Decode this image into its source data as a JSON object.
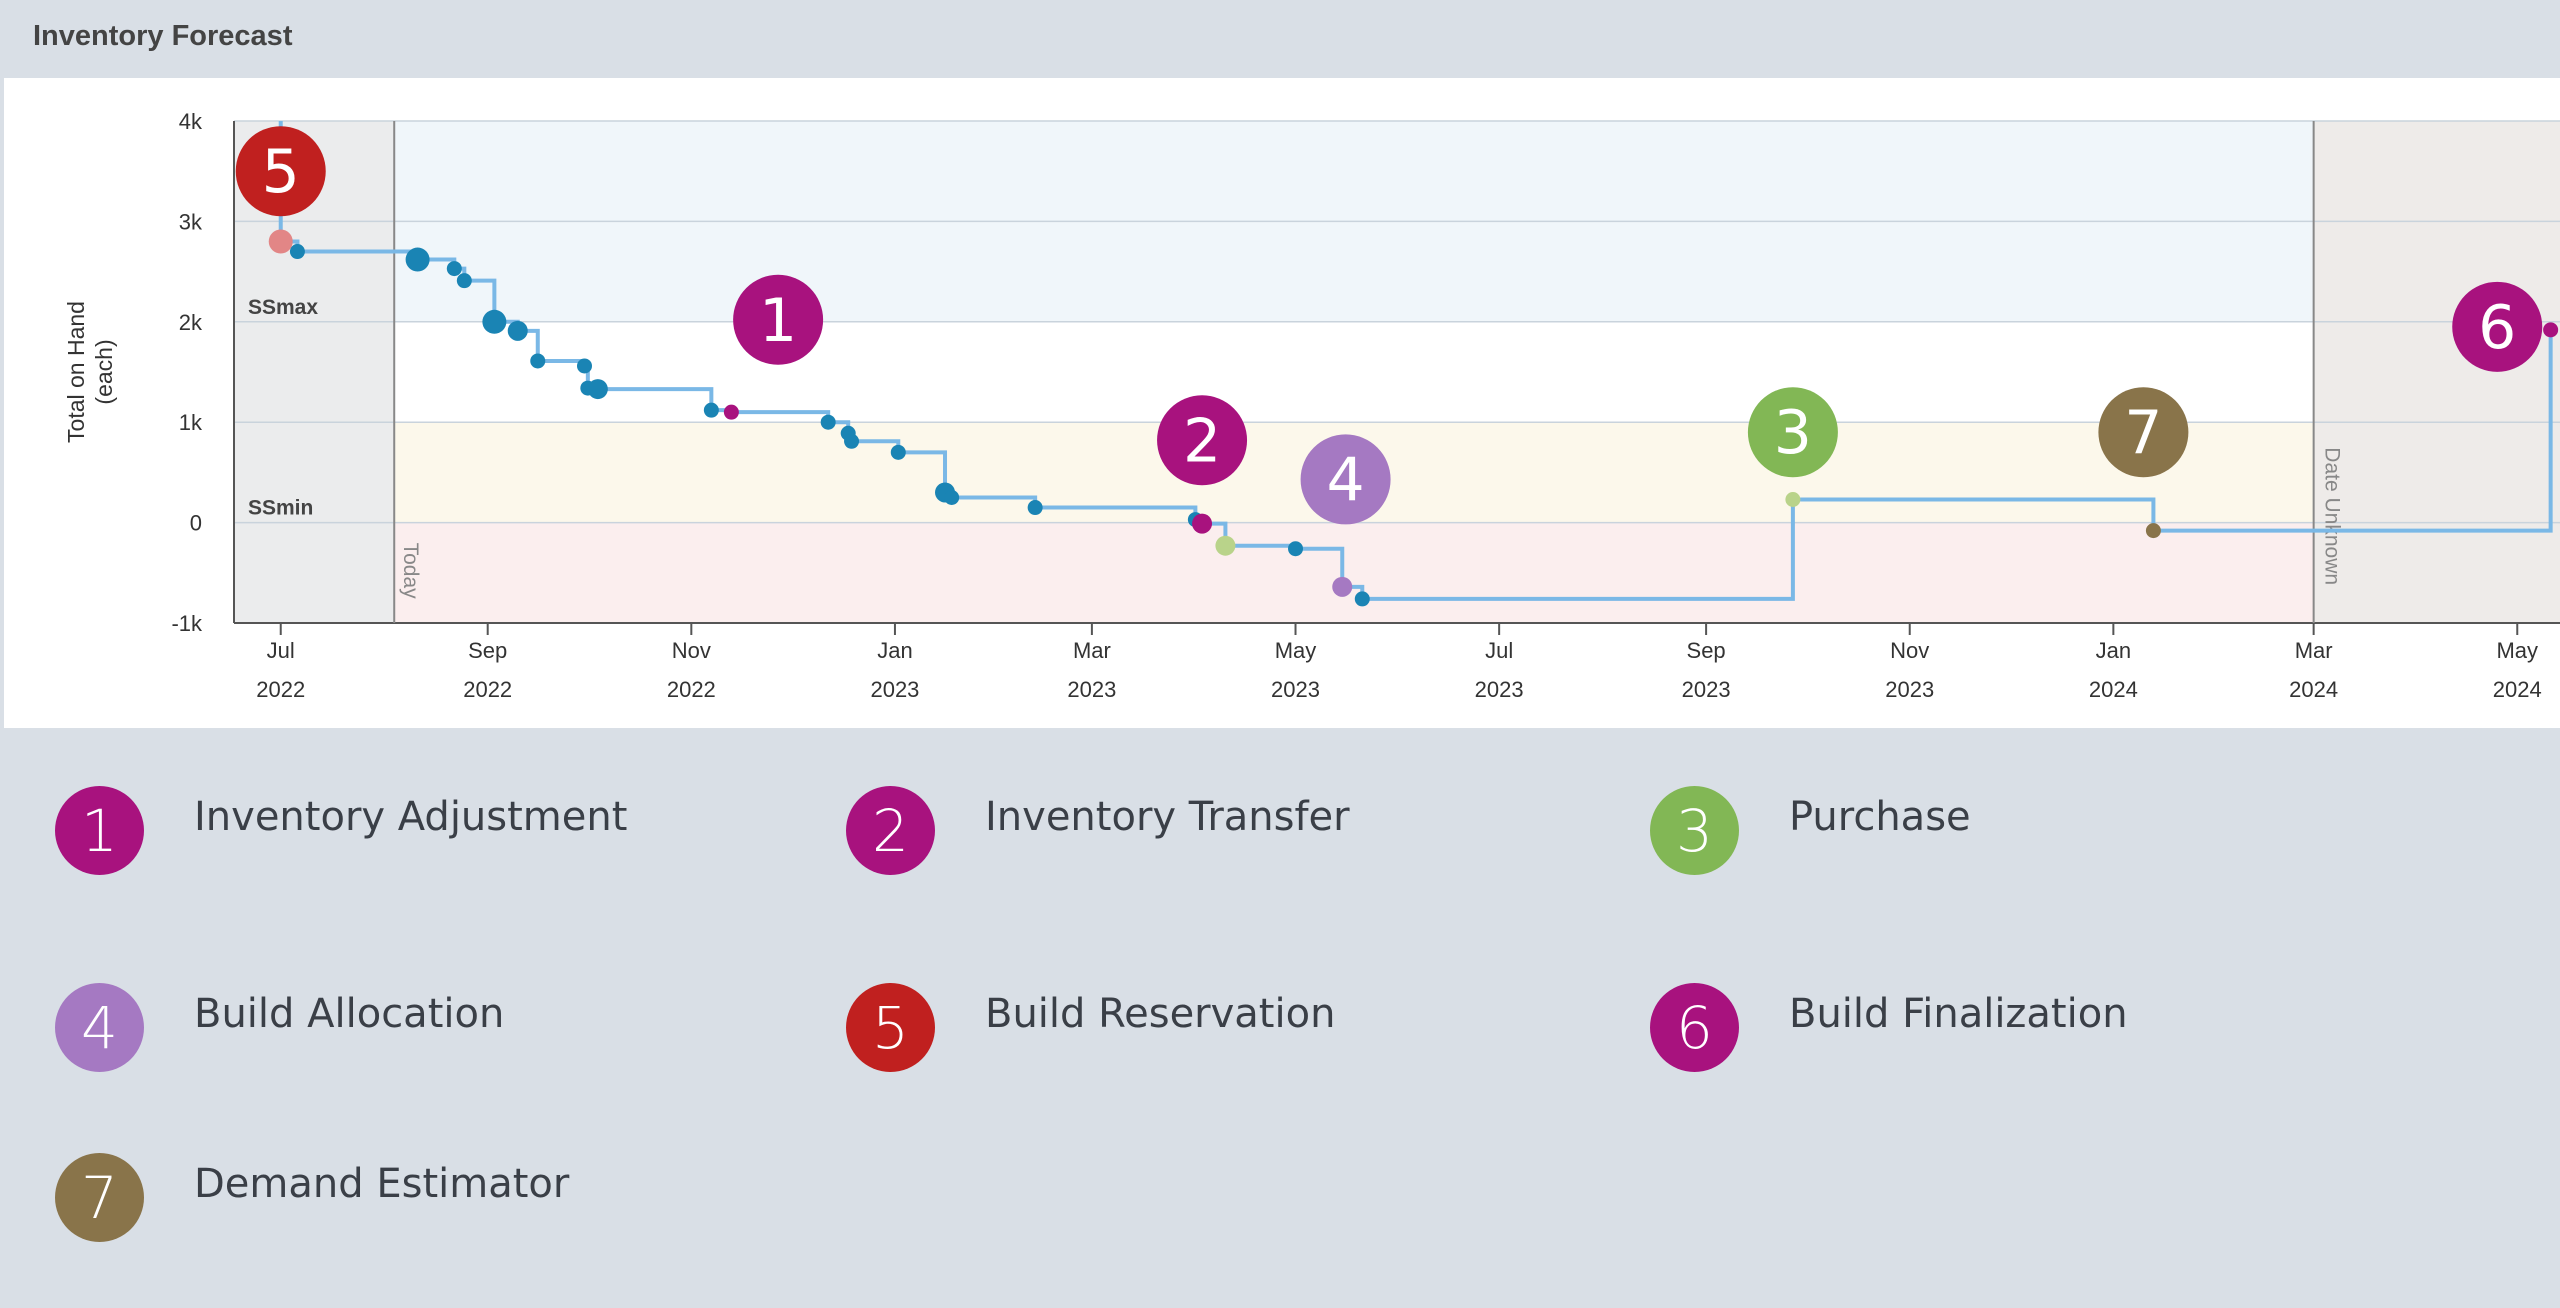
{
  "panel": {
    "title": "Inventory Forecast"
  },
  "colors": {
    "step_line": "#7ab8e6",
    "default_point": "#1a84b4",
    "band_ssmax": "#f0f6fa",
    "band_ssmin": "#fcf8eb",
    "band_negative": "#fbeeee",
    "shade_past": "#e8e9ea",
    "shade_unknown": "#ebe8e5"
  },
  "event_types": [
    {
      "n": "1",
      "label": "Inventory Adjustment",
      "color": "#a8127e"
    },
    {
      "n": "2",
      "label": "Inventory Transfer",
      "color": "#a8127e"
    },
    {
      "n": "3",
      "label": "Purchase",
      "color": "#82b755"
    },
    {
      "n": "4",
      "label": "Build Allocation",
      "color": "#a579c2"
    },
    {
      "n": "5",
      "label": "Build Reservation",
      "color": "#c0201f"
    },
    {
      "n": "6",
      "label": "Build Finalization",
      "color": "#a8127e"
    },
    {
      "n": "7",
      "label": "Demand Estimator",
      "color": "#89744a"
    }
  ],
  "chart_data": {
    "type": "line",
    "step": true,
    "title": "",
    "xlabel": "",
    "ylabel": "Total on Hand (each)",
    "ylim": [
      -1000,
      4000
    ],
    "xlim": [
      "2022-06-17",
      "2024-05-15"
    ],
    "y_ticks": [
      {
        "value": -1000,
        "label": "-1k"
      },
      {
        "value": 0,
        "label": "0"
      },
      {
        "value": 1000,
        "label": "1k"
      },
      {
        "value": 2000,
        "label": "2k"
      },
      {
        "value": 3000,
        "label": "3k"
      },
      {
        "value": 4000,
        "label": "4k"
      }
    ],
    "x_ticks": [
      {
        "date": "2022-07-01",
        "month": "Jul",
        "year": "2022"
      },
      {
        "date": "2022-09-01",
        "month": "Sep",
        "year": "2022"
      },
      {
        "date": "2022-11-01",
        "month": "Nov",
        "year": "2022"
      },
      {
        "date": "2023-01-01",
        "month": "Jan",
        "year": "2023"
      },
      {
        "date": "2023-03-01",
        "month": "Mar",
        "year": "2023"
      },
      {
        "date": "2023-05-01",
        "month": "May",
        "year": "2023"
      },
      {
        "date": "2023-07-01",
        "month": "Jul",
        "year": "2023"
      },
      {
        "date": "2023-09-01",
        "month": "Sep",
        "year": "2023"
      },
      {
        "date": "2023-11-01",
        "month": "Nov",
        "year": "2023"
      },
      {
        "date": "2024-01-01",
        "month": "Jan",
        "year": "2024"
      },
      {
        "date": "2024-03-01",
        "month": "Mar",
        "year": "2024"
      },
      {
        "date": "2024-05-01",
        "month": "May",
        "year": "2024"
      }
    ],
    "bands": [
      {
        "name": "SSmax",
        "from": 2000,
        "to": 4000
      },
      {
        "name": "SSmin",
        "from": 0,
        "to": 1000
      },
      {
        "name": "negative",
        "from": -1000,
        "to": 0
      }
    ],
    "band_labels": [
      {
        "text": "SSmax",
        "y": 2000
      },
      {
        "text": "SSmin",
        "y": 0
      }
    ],
    "today": {
      "date": "2022-08-04",
      "label": "Today"
    },
    "date_unknown": {
      "date": "2024-03-01",
      "label": "Date Unknown"
    },
    "series": [
      {
        "values": [
          {
            "x": "2022-07-01",
            "y": 4000,
            "type": "5"
          },
          {
            "x": "2022-07-01",
            "y": 2800,
            "type": "5",
            "size": "l"
          },
          {
            "x": "2022-07-06",
            "y": 2700
          },
          {
            "x": "2022-08-11",
            "y": 2620,
            "size": "l"
          },
          {
            "x": "2022-08-22",
            "y": 2530
          },
          {
            "x": "2022-08-25",
            "y": 2410
          },
          {
            "x": "2022-09-03",
            "y": 2000,
            "size": "l"
          },
          {
            "x": "2022-09-10",
            "y": 1910,
            "size": "m"
          },
          {
            "x": "2022-09-16",
            "y": 1610
          },
          {
            "x": "2022-09-30",
            "y": 1560
          },
          {
            "x": "2022-10-01",
            "y": 1340
          },
          {
            "x": "2022-10-04",
            "y": 1330,
            "size": "m"
          },
          {
            "x": "2022-11-07",
            "y": 1120
          },
          {
            "x": "2022-11-13",
            "y": 1100,
            "type": "1"
          },
          {
            "x": "2022-12-12",
            "y": 1000
          },
          {
            "x": "2022-12-18",
            "y": 890
          },
          {
            "x": "2022-12-19",
            "y": 810
          },
          {
            "x": "2023-01-02",
            "y": 700
          },
          {
            "x": "2023-01-16",
            "y": 300,
            "size": "m"
          },
          {
            "x": "2023-01-18",
            "y": 250
          },
          {
            "x": "2023-02-12",
            "y": 150
          },
          {
            "x": "2023-04-01",
            "y": 30
          },
          {
            "x": "2023-04-03",
            "y": -10,
            "type": "2",
            "size": "m"
          },
          {
            "x": "2023-04-10",
            "y": -230,
            "type": "3",
            "size": "m"
          },
          {
            "x": "2023-05-01",
            "y": -260
          },
          {
            "x": "2023-05-15",
            "y": -640,
            "type": "4",
            "size": "m"
          },
          {
            "x": "2023-05-21",
            "y": -760
          },
          {
            "x": "2023-09-27",
            "y": 230,
            "type": "3"
          },
          {
            "x": "2024-01-13",
            "y": -80,
            "type": "7"
          },
          {
            "x": "2024-05-11",
            "y": 1920,
            "type": "6"
          }
        ]
      }
    ],
    "markers": [
      {
        "n": "5",
        "x": "2022-07-01",
        "y": 3500
      },
      {
        "n": "1",
        "x": "2022-11-27",
        "y": 2020
      },
      {
        "n": "2",
        "x": "2023-04-03",
        "y": 820
      },
      {
        "n": "4",
        "x": "2023-05-16",
        "y": 430
      },
      {
        "n": "3",
        "x": "2023-09-27",
        "y": 900
      },
      {
        "n": "7",
        "x": "2024-01-10",
        "y": 900
      },
      {
        "n": "6",
        "x": "2024-04-25",
        "y": 1950
      }
    ]
  }
}
